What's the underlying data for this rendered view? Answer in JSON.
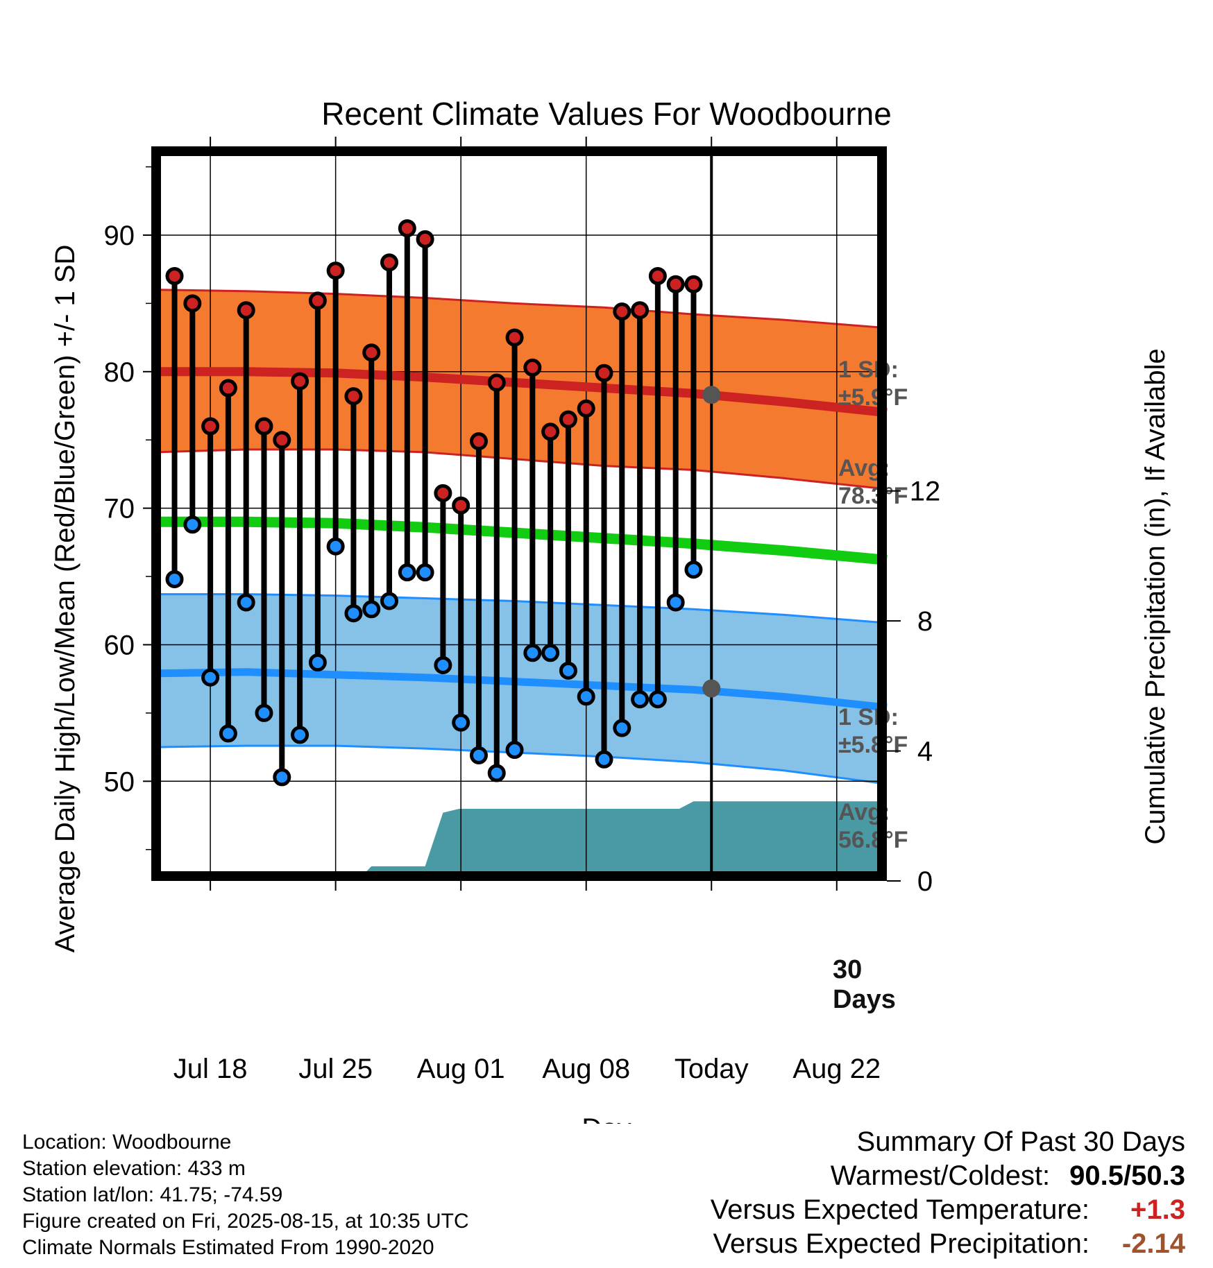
{
  "title": "Recent Climate Values For Woodbourne",
  "left_axis_label": "Average Daily High/Low/Mean (Red/Blue/Green) +/- 1 SD",
  "right_axis_label": "Cumulative Precipitation (in), If Available",
  "x_axis_label": "Day",
  "annotations": {
    "high_sd_line1": "1 SD:",
    "high_sd_line2": "±5.9°F",
    "high_avg_line1": "Avg:",
    "high_avg_line2": "78.3°F",
    "low_sd_line1": "1 SD:",
    "low_sd_line2": "±5.8°F",
    "low_avg_line1": "Avg:",
    "low_avg_line2": "56.8°F",
    "days_line1": "30",
    "days_line2": "Days"
  },
  "info": {
    "location": "Location: Woodbourne",
    "elevation": "Station elevation: 433 m",
    "latlon": "Station lat/lon: 41.75; -74.59",
    "created": "Figure created on Fri, 2025-08-15, at 10:35 UTC",
    "normals": "Climate Normals Estimated From 1990-2020"
  },
  "summary": {
    "heading": "Summary Of Past 30 Days",
    "warmest_label": "Warmest/Coldest:",
    "warmest_value": "90.5/50.3",
    "temp_label": "Versus Expected Temperature:",
    "temp_value": "+1.3",
    "precip_label": "Versus Expected Precipitation:",
    "precip_value": "-2.14"
  },
  "colors": {
    "high": "#cc2222",
    "high_band": "#f47a30",
    "mean": "#11cc11",
    "low": "#1f8fff",
    "low_band": "#86c1e8",
    "precip": "#4a9aa5",
    "temp_anomaly": "#cc2222",
    "precip_anomaly": "#a0522d",
    "avg_marker": "#555555"
  },
  "chart_data": {
    "type": "line",
    "x_tick_labels": [
      "Jul 18",
      "Jul 25",
      "Aug 01",
      "Aug 08",
      "Today",
      "Aug 22"
    ],
    "x_tick_days": [
      18,
      25,
      32,
      39,
      46,
      53
    ],
    "x_range": [
      14.7,
      55.8
    ],
    "today_day": 46,
    "left_axis": {
      "ylim": [
        42.7,
        96.5
      ],
      "ticks": [
        50,
        60,
        70,
        80,
        90
      ]
    },
    "right_axis": {
      "ylim": [
        0,
        22.6
      ],
      "ticks": [
        0,
        4,
        8,
        12
      ]
    },
    "daily": {
      "days": [
        16,
        17,
        18,
        19,
        20,
        21,
        22,
        23,
        24,
        25,
        26,
        27,
        28,
        29,
        30,
        31,
        32,
        33,
        34,
        35,
        36,
        37,
        38,
        39,
        40,
        41,
        42,
        43,
        44,
        45
      ],
      "high": [
        87.0,
        85.0,
        76.0,
        78.8,
        84.5,
        76.0,
        75.0,
        79.3,
        85.2,
        87.4,
        78.2,
        81.4,
        88.0,
        90.5,
        89.7,
        71.1,
        70.2,
        74.9,
        79.2,
        82.5,
        80.3,
        75.6,
        76.5,
        77.3,
        79.9,
        84.4,
        84.5,
        87.0,
        86.4,
        86.4
      ],
      "low": [
        64.8,
        68.8,
        57.6,
        53.5,
        63.1,
        55.0,
        50.3,
        53.4,
        58.7,
        67.2,
        62.3,
        62.6,
        63.2,
        65.3,
        65.3,
        58.5,
        54.3,
        51.9,
        50.6,
        52.3,
        59.4,
        59.4,
        58.1,
        56.2,
        51.6,
        53.9,
        56.0,
        56.0,
        63.1,
        65.5
      ]
    },
    "normals": {
      "days": [
        15,
        20,
        25,
        30,
        35,
        40,
        45,
        50,
        55.8
      ],
      "high_mean": [
        80.0,
        80.0,
        79.9,
        79.6,
        79.2,
        78.8,
        78.4,
        77.8,
        77.0
      ],
      "high_upper": [
        86.0,
        85.9,
        85.7,
        85.4,
        85.0,
        84.7,
        84.2,
        83.8,
        83.2
      ],
      "high_lower": [
        74.1,
        74.3,
        74.3,
        74.1,
        73.6,
        73.1,
        72.8,
        72.2,
        71.4
      ],
      "mean": [
        69.0,
        69.0,
        68.9,
        68.6,
        68.2,
        67.8,
        67.4,
        66.9,
        66.2
      ],
      "low_mean": [
        57.9,
        58.0,
        57.8,
        57.6,
        57.3,
        57.0,
        56.7,
        56.2,
        55.4
      ],
      "low_upper": [
        63.7,
        63.7,
        63.6,
        63.4,
        63.2,
        62.9,
        62.6,
        62.2,
        61.6
      ],
      "low_lower": [
        52.5,
        52.6,
        52.6,
        52.4,
        52.1,
        51.8,
        51.4,
        50.8,
        49.8
      ]
    },
    "today_markers": {
      "high_avg": 78.3,
      "low_avg": 56.8
    },
    "precip": {
      "days": [
        26.2,
        27.0,
        30.0,
        31.0,
        31.9,
        32.0,
        33.2,
        44.2,
        45.0,
        55.8
      ],
      "values": [
        0.0,
        0.45,
        0.45,
        2.1,
        2.22,
        2.22,
        2.22,
        2.22,
        2.45,
        2.45
      ]
    },
    "legend": "none",
    "grid": true
  }
}
